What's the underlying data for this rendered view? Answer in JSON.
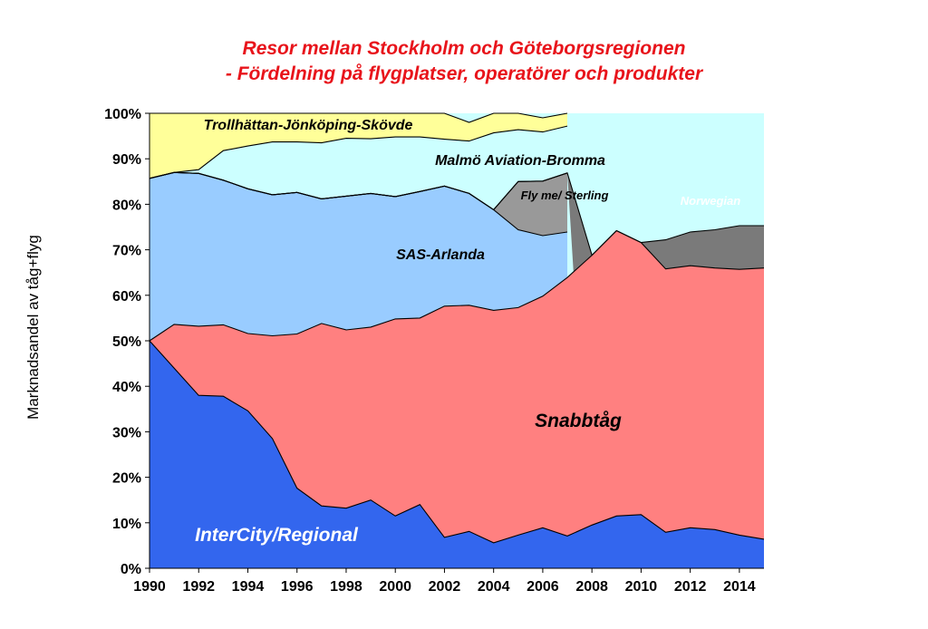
{
  "chart_data": {
    "type": "area",
    "stacked": true,
    "title": "Resor mellan Stockholm och Göteborgsregionen",
    "subtitle": "- Fördelning på flygplatser, operatörer och produkter",
    "xlabel": "",
    "ylabel": "Marknadsandel av tåg+flyg",
    "xlim": [
      1990,
      2015
    ],
    "ylim": [
      0,
      100
    ],
    "x_ticks": [
      "1990",
      "1992",
      "1994",
      "1996",
      "1998",
      "2000",
      "2002",
      "2004",
      "2006",
      "2008",
      "2010",
      "2012",
      "2014"
    ],
    "y_ticks": [
      "0%",
      "10%",
      "20%",
      "30%",
      "40%",
      "50%",
      "60%",
      "70%",
      "80%",
      "90%",
      "100%"
    ],
    "grid": false,
    "legend": "none",
    "x": [
      1990,
      1991,
      1992,
      1993,
      1994,
      1995,
      1996,
      1997,
      1998,
      1999,
      2000,
      2001,
      2002,
      2003,
      2004,
      2005,
      2006,
      2007,
      2008,
      2009,
      2010,
      2011,
      2012,
      2013,
      2014,
      2015
    ],
    "series": [
      {
        "name": "InterCity/Regional",
        "color": "#3366ee",
        "label_color": "#ffffff",
        "values": [
          50.0,
          44.0,
          38.0,
          37.8,
          34.6,
          28.5,
          17.6,
          13.7,
          13.2,
          15.0,
          11.5,
          14.0,
          6.8,
          8.1,
          5.6,
          7.3,
          8.9,
          7.1,
          9.5,
          11.5,
          11.8,
          7.9,
          8.9,
          8.5,
          7.3,
          6.4
        ]
      },
      {
        "name": "Snabbtåg",
        "color": "#ff8080",
        "label_color": "#000000",
        "values": [
          0.0,
          9.6,
          15.2,
          15.7,
          17.0,
          22.6,
          33.9,
          40.1,
          39.2,
          38.0,
          43.3,
          41.0,
          50.8,
          49.7,
          51.1,
          50.0,
          50.9,
          56.8,
          59.3,
          62.7,
          59.8,
          57.9,
          57.6,
          57.5,
          58.4,
          59.6
        ]
      },
      {
        "name": "SAS-Arlanda",
        "color": "#99ccff",
        "label_color": "#000000",
        "values": [
          35.7,
          33.4,
          33.6,
          31.8,
          31.8,
          31.0,
          31.1,
          27.4,
          29.4,
          29.4,
          26.9,
          27.8,
          26.4,
          24.6,
          22.1,
          17.1,
          13.3,
          10.0,
          null,
          null,
          null,
          null,
          null,
          null,
          null,
          null
        ]
      },
      {
        "name": "Fly me/ Sterling",
        "color": "#999999",
        "label_color": "#000000",
        "values": [
          0,
          0,
          0,
          0,
          0,
          0,
          0,
          0,
          0,
          0,
          0,
          0,
          0,
          0,
          0,
          10.6,
          12.0,
          13.0,
          null,
          null,
          null,
          null,
          null,
          null,
          null,
          null
        ]
      },
      {
        "name": "Norwegian",
        "color": "#7a7a7a",
        "label_color": "#ffffff",
        "values": [
          0,
          0,
          0,
          0,
          0,
          0,
          0,
          0,
          0,
          0,
          0,
          0,
          0,
          0,
          0,
          0,
          0,
          0,
          0,
          0,
          0,
          6.4,
          7.4,
          8.4,
          9.6,
          9.3
        ]
      },
      {
        "name": "Malmö Aviation-Bromma",
        "color": "#ccffff",
        "label_color": "#000000",
        "values": [
          0.0,
          0.0,
          0.8,
          6.5,
          9.4,
          11.6,
          11.1,
          12.3,
          12.7,
          12.0,
          13.1,
          12.0,
          10.3,
          11.5,
          16.9,
          11.4,
          10.8,
          10.3,
          null,
          null,
          null,
          null,
          null,
          null,
          null,
          null
        ]
      },
      {
        "name": "Trollhättan-Jönköping-Skövde",
        "color": "#ffff99",
        "label_color": "#000000",
        "values": [
          14.3,
          13.0,
          12.4,
          8.2,
          7.2,
          6.3,
          6.3,
          6.5,
          5.5,
          5.6,
          5.2,
          5.2,
          5.7,
          4.1,
          4.3,
          3.6,
          3.1,
          2.8,
          null,
          null,
          null,
          null,
          null,
          null,
          null,
          null
        ]
      }
    ],
    "labels": [
      "Trollhättan-Jönköping-Skövde",
      "Malmö Aviation-Bromma",
      "Fly me/ Sterling",
      "Norwegian",
      "SAS-Arlanda",
      "Snabbtåg",
      "InterCity/Regional"
    ]
  }
}
